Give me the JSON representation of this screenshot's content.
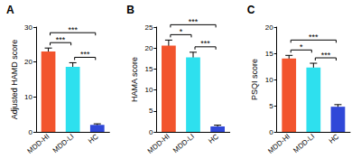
{
  "chart_data": [
    {
      "type": "bar",
      "title": "A",
      "y_label": "Adjusted HAMD score",
      "categories": [
        "MDD-HI",
        "MDD-LI",
        "HC"
      ],
      "values": [
        23,
        18.6,
        2
      ],
      "errors": [
        1,
        1.2,
        0.3
      ],
      "colors": [
        "#f2542d",
        "#2ee0ee",
        "#3048d8"
      ],
      "ylim": [
        0,
        30
      ],
      "yticks": [
        0,
        10,
        20,
        30
      ],
      "grid": false,
      "comparisons": [
        {
          "groups": [
            "MDD-HI",
            "MDD-LI"
          ],
          "label": "***"
        },
        {
          "groups": [
            "MDD-LI",
            "HC"
          ],
          "label": "***"
        },
        {
          "groups": [
            "MDD-HI",
            "HC"
          ],
          "label": "***"
        }
      ]
    },
    {
      "type": "bar",
      "title": "B",
      "y_label": "HAMA score",
      "categories": [
        "MDD-HI",
        "MDD-LI",
        "HC"
      ],
      "values": [
        20.6,
        17.8,
        1.3
      ],
      "errors": [
        1.3,
        1.2,
        0.3
      ],
      "colors": [
        "#f2542d",
        "#2ee0ee",
        "#3048d8"
      ],
      "ylim": [
        0,
        25
      ],
      "yticks": [
        0,
        5,
        10,
        15,
        20,
        25
      ],
      "grid": false,
      "comparisons": [
        {
          "groups": [
            "MDD-HI",
            "MDD-LI"
          ],
          "label": "*"
        },
        {
          "groups": [
            "MDD-LI",
            "HC"
          ],
          "label": "***"
        },
        {
          "groups": [
            "MDD-HI",
            "HC"
          ],
          "label": "***"
        }
      ]
    },
    {
      "type": "bar",
      "title": "C",
      "y_label": "PSQI score",
      "categories": [
        "MDD-HI",
        "MDD-LI",
        "HC"
      ],
      "values": [
        14,
        12.3,
        4.8
      ],
      "errors": [
        0.6,
        0.8,
        0.4
      ],
      "colors": [
        "#f2542d",
        "#2ee0ee",
        "#3048d8"
      ],
      "ylim": [
        0,
        20
      ],
      "yticks": [
        0,
        5,
        10,
        15,
        20
      ],
      "grid": false,
      "comparisons": [
        {
          "groups": [
            "MDD-HI",
            "MDD-LI"
          ],
          "label": "*"
        },
        {
          "groups": [
            "MDD-LI",
            "HC"
          ],
          "label": "***"
        },
        {
          "groups": [
            "MDD-HI",
            "HC"
          ],
          "label": "***"
        }
      ]
    }
  ]
}
